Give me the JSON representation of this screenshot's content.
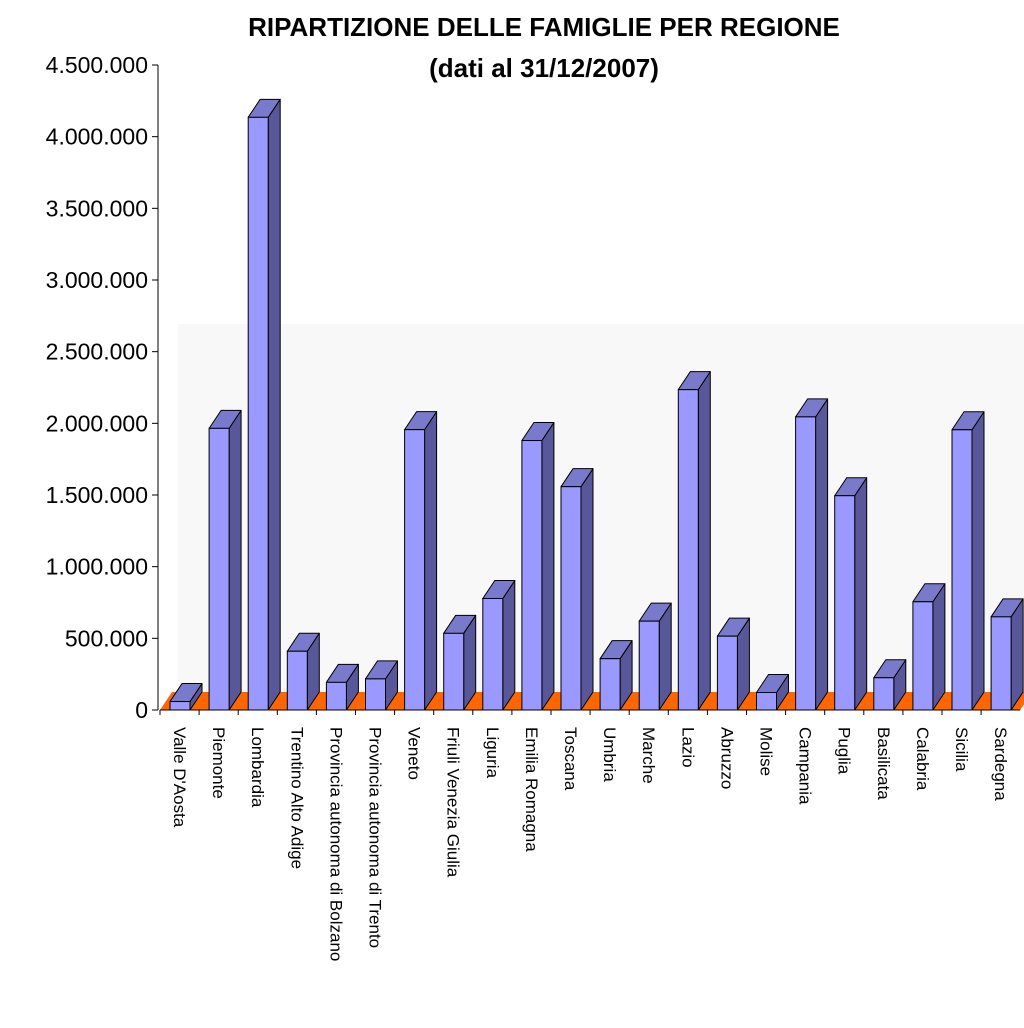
{
  "chart_data": {
    "type": "bar",
    "title": "RIPARTIZIONE DELLE FAMIGLIE PER REGIONE",
    "subtitle": "(dati al 31/12/2007)",
    "categories": [
      "Valle D'Aosta",
      "Piemonte",
      "Lombardia",
      "Trentino Alto Adige",
      "Provincia autonoma di Bolzano",
      "Provincia autonoma di Trento",
      "Veneto",
      "Friuli Venezia Giulia",
      "Liguria",
      "Emilia Romagna",
      "Toscana",
      "Umbria",
      "Marche",
      "Lazio",
      "Abruzzo",
      "Molise",
      "Campania",
      "Puglia",
      "Basilicata",
      "Calabria",
      "Sicilia",
      "Sardegna"
    ],
    "values": [
      59000,
      1965000,
      4135000,
      410000,
      193000,
      217000,
      1956000,
      535000,
      778000,
      1880000,
      1558000,
      358000,
      620000,
      2235000,
      515000,
      122000,
      2045000,
      1495000,
      225000,
      755000,
      1955000,
      650000
    ],
    "ylim": [
      0,
      4500000
    ],
    "yticks": [
      "0",
      "500.000",
      "1.000.000",
      "1.500.000",
      "2.000.000",
      "2.500.000",
      "3.000.000",
      "3.500.000",
      "4.000.000",
      "4.500.000"
    ],
    "xlabel": "",
    "ylabel": "",
    "grid": false,
    "legend": "none",
    "colors": {
      "bar_front": "#9999FF",
      "bar_top": "#7A7ACC",
      "bar_side": "#575799",
      "floor": "#FF6600",
      "wall": "#F8F8F8"
    }
  }
}
